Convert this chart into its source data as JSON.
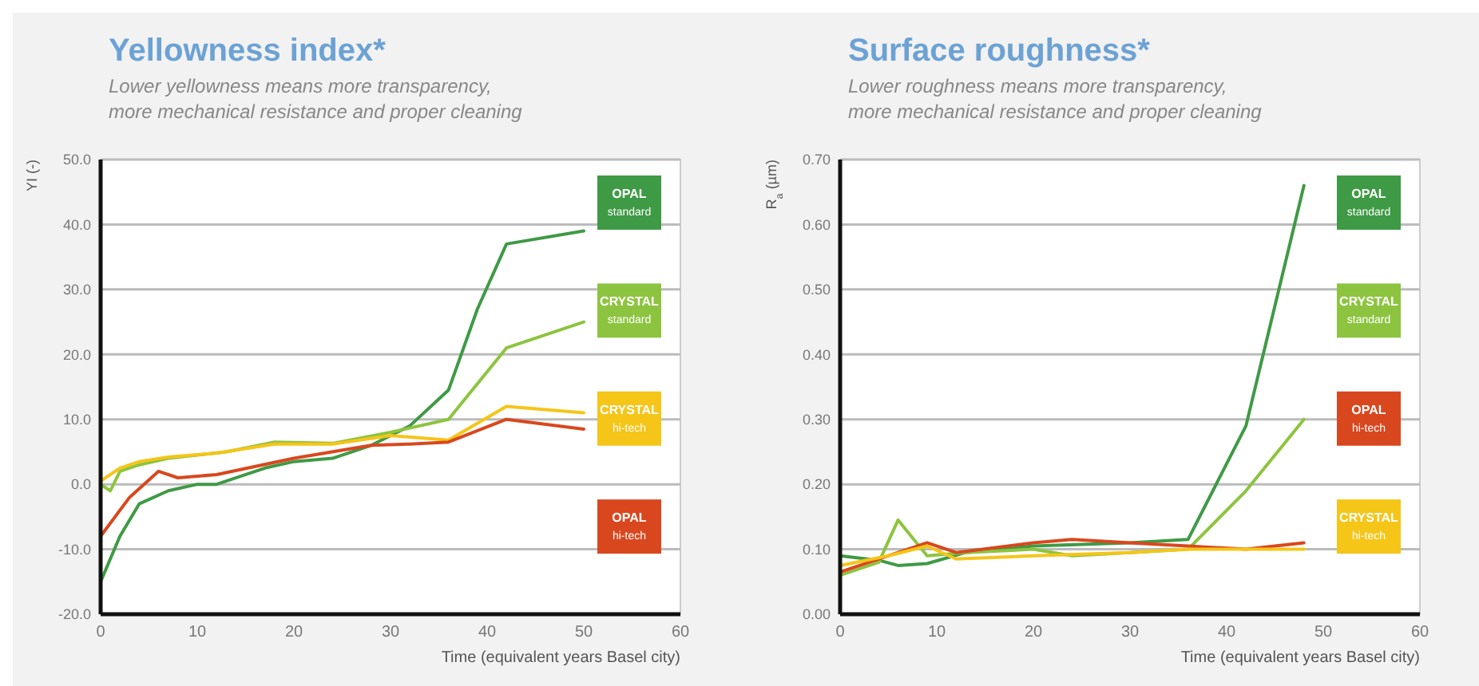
{
  "chart_data": [
    {
      "type": "line",
      "title": "Yellowness index*",
      "subtitle": "Lower yellowness means more transparency,\nmore mechanical resistance and proper cleaning",
      "xlabel": "Time (equivalent years Basel city)",
      "ylabel": "YI (-)",
      "xlim": [
        0,
        60
      ],
      "xticks": [
        0,
        10,
        20,
        30,
        40,
        50,
        60
      ],
      "ylim": [
        -20,
        50
      ],
      "yticks": [
        {
          "value": -20,
          "label": "-20.0"
        },
        {
          "value": -10,
          "label": "-10.0"
        },
        {
          "value": 0,
          "label": "0.0"
        },
        {
          "value": 10,
          "label": "10.0"
        },
        {
          "value": 20,
          "label": "20.0"
        },
        {
          "value": 30,
          "label": "30.0"
        },
        {
          "value": 40,
          "label": "40.0"
        },
        {
          "value": 50,
          "label": "50.0"
        }
      ],
      "grid": "y",
      "legend": "right",
      "marker": "none",
      "line_style": "solid",
      "series": [
        {
          "name": "OPAL standard",
          "color": "#3f9a45",
          "x": [
            0,
            2,
            4,
            7,
            10,
            12,
            17,
            20,
            24,
            28,
            32,
            36,
            39,
            42,
            50
          ],
          "values": [
            -15,
            -8,
            -3,
            -1,
            0,
            0,
            2.5,
            3.5,
            4,
            6,
            9,
            14.5,
            27,
            37,
            39
          ]
        },
        {
          "name": "CRYSTAL standard",
          "color": "#8dc43f",
          "x": [
            0,
            1,
            2,
            4,
            7,
            10,
            13,
            18,
            24,
            30,
            36,
            42,
            50
          ],
          "values": [
            0,
            -1,
            2,
            3,
            4,
            4.5,
            5,
            6.5,
            6.3,
            8,
            10,
            21,
            25
          ]
        },
        {
          "name": "CRYSTAL hi-tech",
          "color": "#f5c518",
          "x": [
            0,
            1,
            2,
            4,
            7,
            12,
            18,
            24,
            30,
            36,
            42,
            50
          ],
          "values": [
            0.5,
            1.5,
            2.5,
            3.5,
            4.2,
            4.8,
            6.2,
            6.2,
            7.5,
            6.8,
            12,
            11
          ]
        },
        {
          "name": "OPAL hi-tech",
          "color": "#d9471e",
          "x": [
            0,
            3,
            6,
            8,
            12,
            20,
            28,
            32,
            36,
            42,
            50
          ],
          "values": [
            -8,
            -2,
            2,
            1,
            1.5,
            4,
            6,
            6.2,
            6.5,
            10,
            8.5
          ]
        }
      ]
    },
    {
      "type": "line",
      "title": "Surface roughness*",
      "subtitle": "Lower roughness means more transparency,\nmore mechanical resistance and proper cleaning",
      "xlabel": "Time (equivalent years Basel city)",
      "ylabel": "R$_{a}$ (µm)",
      "xlim": [
        0,
        60
      ],
      "xticks": [
        0,
        10,
        20,
        30,
        40,
        50,
        60
      ],
      "ylim": [
        0,
        0.7
      ],
      "yticks": [
        {
          "value": 0,
          "label": "0.00"
        },
        {
          "value": 0.1,
          "label": "0.10"
        },
        {
          "value": 0.2,
          "label": "0.20"
        },
        {
          "value": 0.3,
          "label": "0.30"
        },
        {
          "value": 0.4,
          "label": "0.40"
        },
        {
          "value": 0.5,
          "label": "0.50"
        },
        {
          "value": 0.6,
          "label": "0.60"
        },
        {
          "value": 0.7,
          "label": "0.70"
        }
      ],
      "grid": "y",
      "legend": "right",
      "marker": "none",
      "line_style": "solid",
      "series": [
        {
          "name": "OPAL standard",
          "color": "#3f9a45",
          "x": [
            0,
            4,
            6,
            9,
            13,
            20,
            30,
            36,
            42,
            48
          ],
          "values": [
            0.09,
            0.083,
            0.075,
            0.078,
            0.095,
            0.105,
            0.11,
            0.115,
            0.29,
            0.66
          ]
        },
        {
          "name": "CRYSTAL standard",
          "color": "#8dc43f",
          "x": [
            0,
            4,
            6,
            9,
            13,
            20,
            24,
            30,
            36,
            42,
            48
          ],
          "values": [
            0.06,
            0.08,
            0.145,
            0.09,
            0.095,
            0.1,
            0.09,
            0.095,
            0.1,
            0.19,
            0.3
          ]
        },
        {
          "name": "OPAL hi-tech",
          "color": "#d9471e",
          "x": [
            0,
            6,
            9,
            12,
            20,
            24,
            30,
            36,
            42,
            48
          ],
          "values": [
            0.065,
            0.095,
            0.11,
            0.095,
            0.11,
            0.115,
            0.11,
            0.105,
            0.1,
            0.11
          ]
        },
        {
          "name": "CRYSTAL hi-tech",
          "color": "#f5c518",
          "x": [
            0,
            5,
            9,
            12,
            20,
            30,
            36,
            42,
            48
          ],
          "values": [
            0.075,
            0.09,
            0.105,
            0.085,
            0.09,
            0.095,
            0.1,
            0.1,
            0.1
          ]
        }
      ]
    }
  ]
}
